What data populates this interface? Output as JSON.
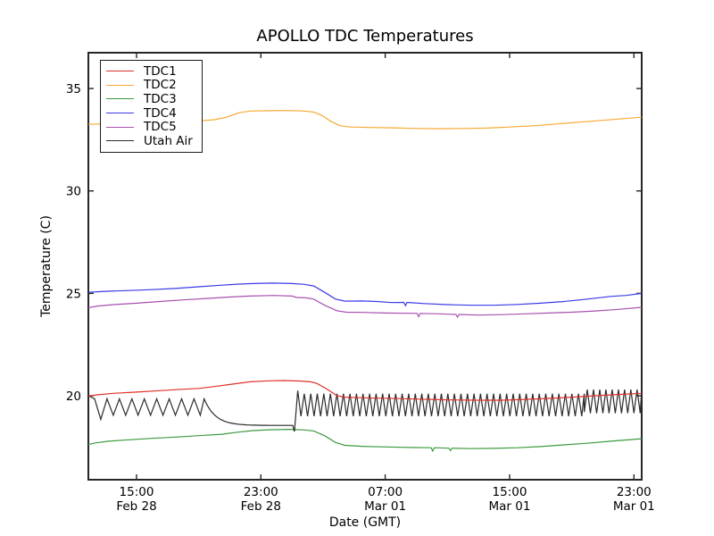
{
  "chart_data": {
    "type": "line",
    "title": "APOLLO TDC Temperatures",
    "xlabel": "Date (GMT)",
    "ylabel": "Temperature (C)",
    "grid": false,
    "legend_position": "upper-left",
    "x_unit": "hours since Feb 28 00:00 GMT",
    "x_range": [
      11.9,
      47.5
    ],
    "y_range": [
      15.9,
      36.75
    ],
    "y_ticks": [
      {
        "v": 20,
        "label": "20"
      },
      {
        "v": 25,
        "label": "25"
      },
      {
        "v": 30,
        "label": "30"
      },
      {
        "v": 35,
        "label": "35"
      }
    ],
    "x_ticks": [
      {
        "t": 15,
        "time": "15:00",
        "date": "Feb 28"
      },
      {
        "t": 23,
        "time": "23:00",
        "date": "Feb 28"
      },
      {
        "t": 31,
        "time": "07:00",
        "date": "Mar 01"
      },
      {
        "t": 39,
        "time": "15:00",
        "date": "Mar 01"
      },
      {
        "t": 47,
        "time": "23:00",
        "date": "Mar 01"
      }
    ],
    "draw_order": [
      "TDC2",
      "TDC3",
      "TDC4",
      "TDC5",
      "Utah Air",
      "TDC1"
    ],
    "series": [
      {
        "name": "TDC1",
        "color": "#e0312a",
        "points": [
          [
            11.9,
            19.98
          ],
          [
            12.5,
            20.05
          ],
          [
            13.5,
            20.12
          ],
          [
            15,
            20.18
          ],
          [
            16.5,
            20.25
          ],
          [
            18,
            20.32
          ],
          [
            19,
            20.36
          ],
          [
            20,
            20.45
          ],
          [
            21,
            20.55
          ],
          [
            22.3,
            20.68
          ],
          [
            23.5,
            20.73
          ],
          [
            24.5,
            20.74
          ],
          [
            25.5,
            20.72
          ],
          [
            26.2,
            20.68
          ],
          [
            26.6,
            20.6
          ],
          [
            27.2,
            20.35
          ],
          [
            27.9,
            20.0
          ],
          [
            28.4,
            19.93
          ],
          [
            29.5,
            19.9
          ],
          [
            31,
            19.88
          ],
          [
            33,
            19.84
          ],
          [
            35,
            19.8
          ],
          [
            37,
            19.78
          ],
          [
            38.5,
            19.78
          ],
          [
            40,
            19.82
          ],
          [
            41.5,
            19.87
          ],
          [
            43,
            19.93
          ],
          [
            44.5,
            20.0
          ],
          [
            46,
            20.06
          ],
          [
            47.5,
            20.12
          ]
        ]
      },
      {
        "name": "TDC2",
        "color": "#f7a935",
        "points": [
          [
            11.9,
            33.25
          ],
          [
            13,
            33.28
          ],
          [
            14.5,
            33.32
          ],
          [
            16,
            33.35
          ],
          [
            17.5,
            33.38
          ],
          [
            19,
            33.42
          ],
          [
            20,
            33.48
          ],
          [
            20.8,
            33.6
          ],
          [
            21.6,
            33.82
          ],
          [
            22.3,
            33.9
          ],
          [
            23.5,
            33.92
          ],
          [
            24.8,
            33.93
          ],
          [
            25.8,
            33.9
          ],
          [
            26.4,
            33.85
          ],
          [
            26.9,
            33.7
          ],
          [
            27.5,
            33.4
          ],
          [
            28.1,
            33.18
          ],
          [
            28.8,
            33.12
          ],
          [
            30,
            33.1
          ],
          [
            31.5,
            33.08
          ],
          [
            33,
            33.05
          ],
          [
            34.5,
            33.04
          ],
          [
            36,
            33.05
          ],
          [
            37.5,
            33.07
          ],
          [
            39,
            33.12
          ],
          [
            40.5,
            33.18
          ],
          [
            42,
            33.27
          ],
          [
            43.5,
            33.36
          ],
          [
            45,
            33.45
          ],
          [
            46.3,
            33.53
          ],
          [
            47.5,
            33.6
          ]
        ]
      },
      {
        "name": "TDC3",
        "color": "#3d9a40",
        "points": [
          [
            11.9,
            17.62
          ],
          [
            12.4,
            17.7
          ],
          [
            13.2,
            17.78
          ],
          [
            14.5,
            17.85
          ],
          [
            16,
            17.92
          ],
          [
            17.5,
            17.98
          ],
          [
            19,
            18.05
          ],
          [
            20.5,
            18.12
          ],
          [
            21.5,
            18.22
          ],
          [
            22.5,
            18.3
          ],
          [
            23.5,
            18.34
          ],
          [
            24.8,
            18.36
          ],
          [
            25.8,
            18.33
          ],
          [
            26.4,
            18.28
          ],
          [
            27.1,
            18.05
          ],
          [
            27.8,
            17.72
          ],
          [
            28.4,
            17.58
          ],
          [
            29.5,
            17.53
          ],
          [
            31,
            17.5
          ],
          [
            33,
            17.47
          ],
          [
            33.95,
            17.46
          ],
          [
            34.05,
            17.3
          ],
          [
            34.15,
            17.46
          ],
          [
            35.1,
            17.44
          ],
          [
            35.2,
            17.32
          ],
          [
            35.3,
            17.44
          ],
          [
            36.5,
            17.42
          ],
          [
            38,
            17.43
          ],
          [
            39.5,
            17.46
          ],
          [
            41,
            17.52
          ],
          [
            42.5,
            17.6
          ],
          [
            44,
            17.68
          ],
          [
            45.5,
            17.78
          ],
          [
            46.5,
            17.84
          ],
          [
            47.5,
            17.9
          ]
        ]
      },
      {
        "name": "TDC4",
        "color": "#3a3ae8",
        "points": [
          [
            11.9,
            25.05
          ],
          [
            13,
            25.1
          ],
          [
            14.5,
            25.14
          ],
          [
            16,
            25.18
          ],
          [
            17.5,
            25.24
          ],
          [
            19,
            25.32
          ],
          [
            20.5,
            25.4
          ],
          [
            21.5,
            25.45
          ],
          [
            22.5,
            25.48
          ],
          [
            23.8,
            25.5
          ],
          [
            25,
            25.48
          ],
          [
            25.8,
            25.44
          ],
          [
            26.4,
            25.36
          ],
          [
            27.1,
            25.05
          ],
          [
            27.8,
            24.72
          ],
          [
            28.4,
            24.62
          ],
          [
            29.5,
            24.63
          ],
          [
            30.5,
            24.6
          ],
          [
            31.4,
            24.55
          ],
          [
            32.2,
            24.56
          ],
          [
            32.3,
            24.4
          ],
          [
            32.4,
            24.56
          ],
          [
            33.5,
            24.5
          ],
          [
            35,
            24.45
          ],
          [
            36.5,
            24.42
          ],
          [
            38,
            24.42
          ],
          [
            39.5,
            24.46
          ],
          [
            41,
            24.52
          ],
          [
            42.5,
            24.6
          ],
          [
            44,
            24.72
          ],
          [
            45.5,
            24.85
          ],
          [
            46.5,
            24.9
          ],
          [
            47.5,
            25.0
          ]
        ]
      },
      {
        "name": "TDC5",
        "color": "#a94fb0",
        "points": [
          [
            11.9,
            24.3
          ],
          [
            12.5,
            24.38
          ],
          [
            13.5,
            24.45
          ],
          [
            15,
            24.52
          ],
          [
            16.5,
            24.6
          ],
          [
            18,
            24.68
          ],
          [
            19.5,
            24.75
          ],
          [
            21,
            24.82
          ],
          [
            22.3,
            24.87
          ],
          [
            23.8,
            24.9
          ],
          [
            25,
            24.87
          ],
          [
            25.3,
            24.8
          ],
          [
            25.9,
            24.78
          ],
          [
            26.4,
            24.72
          ],
          [
            27.1,
            24.42
          ],
          [
            27.9,
            24.15
          ],
          [
            28.5,
            24.08
          ],
          [
            29.5,
            24.07
          ],
          [
            31,
            24.04
          ],
          [
            33.05,
            24.02
          ],
          [
            33.15,
            23.86
          ],
          [
            33.25,
            24.02
          ],
          [
            34.5,
            24.0
          ],
          [
            35.55,
            23.97
          ],
          [
            35.65,
            23.84
          ],
          [
            35.75,
            23.97
          ],
          [
            37,
            23.94
          ],
          [
            38.5,
            23.96
          ],
          [
            40,
            24.0
          ],
          [
            41.5,
            24.04
          ],
          [
            43,
            24.08
          ],
          [
            44.5,
            24.14
          ],
          [
            46,
            24.22
          ],
          [
            47.5,
            24.32
          ]
        ]
      },
      {
        "name": "Utah Air",
        "color": "#2b2b2b",
        "segments": [
          {
            "type": "triangle",
            "t0": 11.9,
            "t1": 19.35,
            "min": 19.05,
            "max": 19.85,
            "period": 0.8,
            "start": 20.0,
            "first_min": 18.85
          },
          {
            "type": "decay",
            "t0": 19.35,
            "t1": 25.05,
            "from": 19.85,
            "to": 18.55,
            "rate": 1.4
          },
          {
            "type": "line",
            "t0": 25.05,
            "t1": 25.16,
            "from": 18.55,
            "to": 18.25
          },
          {
            "type": "triangle",
            "t0": 25.16,
            "t1": 43.8,
            "min": 19.0,
            "max": 20.1,
            "period": 0.42,
            "start": 18.25,
            "first_max": 20.25
          },
          {
            "type": "triangle",
            "t0": 43.8,
            "t1": 47.5,
            "min": 19.15,
            "max": 20.3,
            "period": 0.4,
            "start": 19.2
          }
        ]
      }
    ]
  }
}
